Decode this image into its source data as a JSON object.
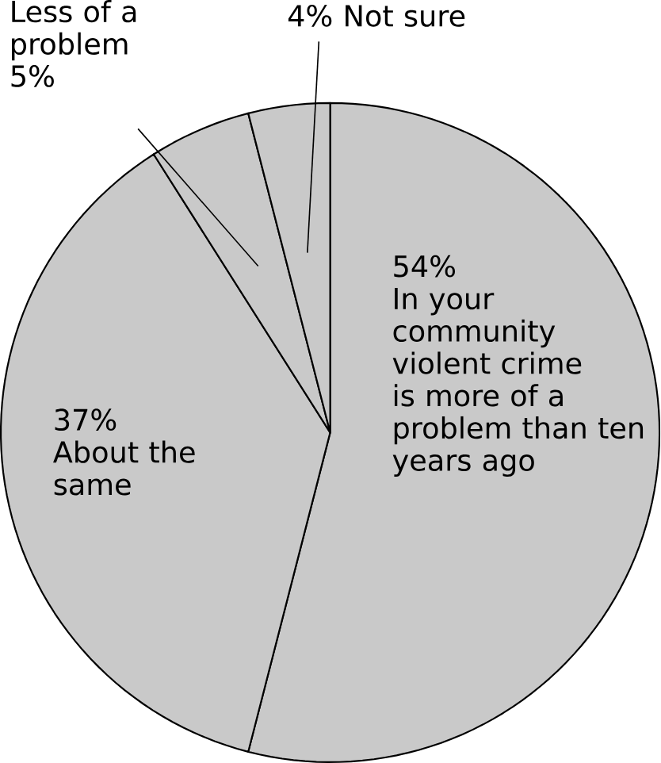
{
  "chart_data": {
    "type": "pie",
    "categories": [
      "In your community violent crime is more of a problem than ten years ago",
      "About the same",
      "Less of a problem",
      "Not sure"
    ],
    "values": [
      54,
      37,
      5,
      4
    ],
    "value_labels": [
      "54%",
      "37%",
      "5%",
      "4%"
    ],
    "colors": [
      "#c9c9c9",
      "#c9c9c9",
      "#c9c9c9",
      "#c9c9c9"
    ]
  }
}
